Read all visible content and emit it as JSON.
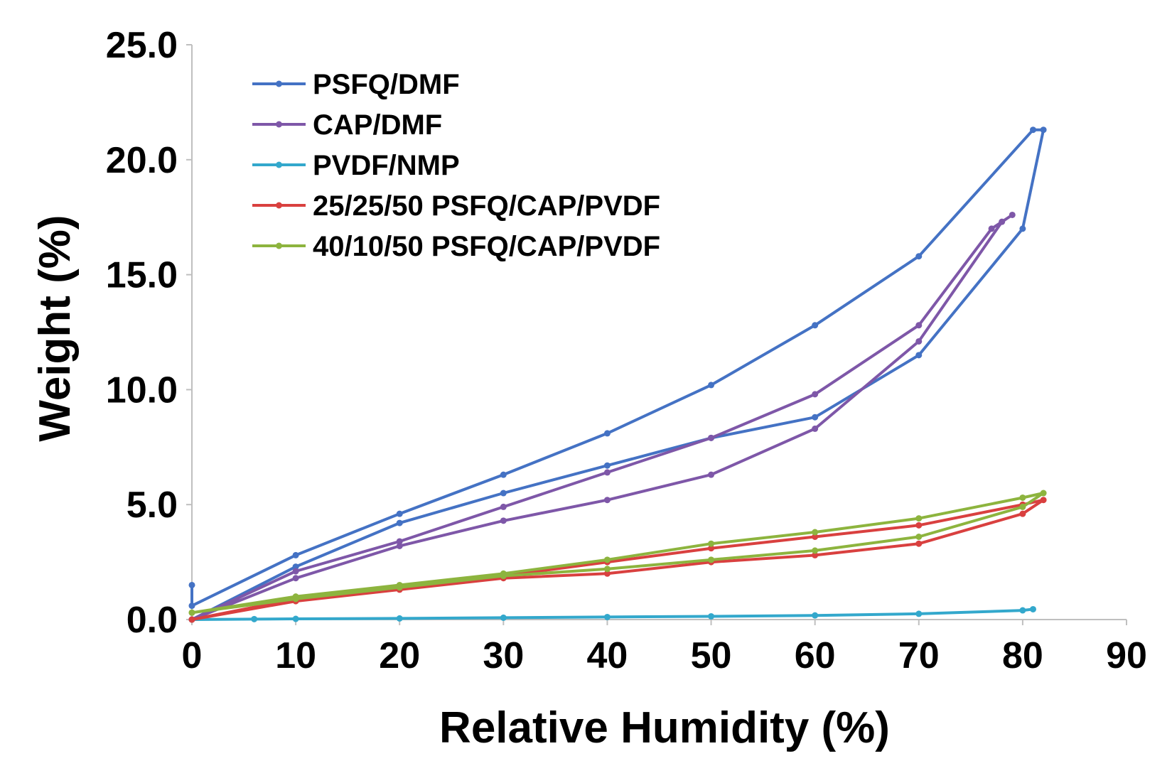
{
  "chart_data": {
    "type": "line",
    "xlabel": "Relative Humidity (%)",
    "ylabel": "Weight (%)",
    "xlim": [
      0,
      90
    ],
    "ylim": [
      0,
      25
    ],
    "x_ticks": [
      "0",
      "10",
      "20",
      "30",
      "40",
      "50",
      "60",
      "70",
      "80",
      "90"
    ],
    "y_ticks": [
      "0.0",
      "5.0",
      "10.0",
      "15.0",
      "20.0",
      "25.0"
    ],
    "grid": false,
    "legend_position": "top-left",
    "series": [
      {
        "name": "PSFQ/DMF",
        "color": "#4472C4",
        "x": [
          0,
          10,
          20,
          30,
          40,
          50,
          60,
          70,
          80,
          82,
          81,
          70,
          60,
          50,
          40,
          30,
          20,
          10,
          0,
          0
        ],
        "y": [
          0,
          2.3,
          4.2,
          5.5,
          6.7,
          7.9,
          8.8,
          11.5,
          17.0,
          21.3,
          21.3,
          15.8,
          12.8,
          10.2,
          8.1,
          6.3,
          4.6,
          2.8,
          0.6,
          1.5
        ]
      },
      {
        "name": "CAP/DMF",
        "color": "#7E57A8",
        "x": [
          0,
          10,
          20,
          30,
          40,
          50,
          60,
          70,
          78,
          79,
          77,
          70,
          60,
          50,
          40,
          30,
          20,
          10,
          0
        ],
        "y": [
          0,
          1.8,
          3.2,
          4.3,
          5.2,
          6.3,
          8.3,
          12.1,
          17.3,
          17.6,
          17.0,
          12.8,
          9.8,
          7.9,
          6.4,
          4.9,
          3.4,
          2.1,
          0
        ]
      },
      {
        "name": "PVDF/NMP",
        "color": "#33A8CC",
        "x": [
          0,
          6,
          10,
          20,
          30,
          40,
          50,
          60,
          70,
          80,
          81
        ],
        "y": [
          0,
          0.02,
          0.03,
          0.05,
          0.08,
          0.11,
          0.14,
          0.18,
          0.25,
          0.4,
          0.45
        ]
      },
      {
        "name": "25/25/50 PSFQ/CAP/PVDF",
        "color": "#D9403F",
        "x": [
          0,
          10,
          20,
          30,
          40,
          50,
          60,
          70,
          80,
          82,
          80,
          70,
          60,
          50,
          40,
          30,
          20,
          10,
          0
        ],
        "y": [
          0,
          0.8,
          1.3,
          1.8,
          2.0,
          2.5,
          2.8,
          3.3,
          4.6,
          5.2,
          5.0,
          4.1,
          3.6,
          3.1,
          2.5,
          1.9,
          1.4,
          0.9,
          0
        ]
      },
      {
        "name": "40/10/50 PSFQ/CAP/PVDF",
        "color": "#8DB43E",
        "x": [
          0,
          10,
          20,
          30,
          40,
          50,
          60,
          70,
          80,
          82,
          80,
          70,
          60,
          50,
          40,
          30,
          20,
          10,
          0
        ],
        "y": [
          0.3,
          0.9,
          1.4,
          1.9,
          2.2,
          2.6,
          3.0,
          3.6,
          4.9,
          5.5,
          5.3,
          4.4,
          3.8,
          3.3,
          2.6,
          2.0,
          1.5,
          1.0,
          0.3
        ]
      }
    ]
  }
}
